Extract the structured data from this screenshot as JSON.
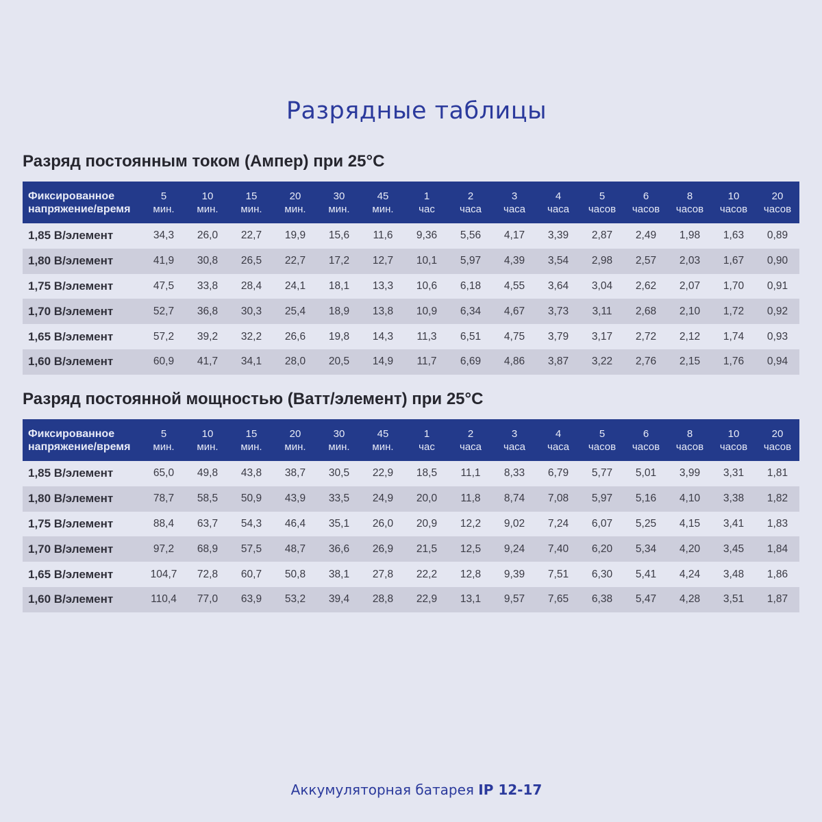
{
  "title": "Разрядные таблицы",
  "header_first": [
    "Фиксированное",
    "напряжение/время"
  ],
  "columns": [
    [
      "5",
      "мин."
    ],
    [
      "10",
      "мин."
    ],
    [
      "15",
      "мин."
    ],
    [
      "20",
      "мин."
    ],
    [
      "30",
      "мин."
    ],
    [
      "45",
      "мин."
    ],
    [
      "1",
      "час"
    ],
    [
      "2",
      "часа"
    ],
    [
      "3",
      "часа"
    ],
    [
      "4",
      "часа"
    ],
    [
      "5",
      "часов"
    ],
    [
      "6",
      "часов"
    ],
    [
      "8",
      "часов"
    ],
    [
      "10",
      "часов"
    ],
    [
      "20",
      "часов"
    ]
  ],
  "tables": [
    {
      "title": "Разряд постоянным током (Ампер) при 25°C",
      "rows": [
        {
          "label": "1,85 В/элемент",
          "values": [
            "34,3",
            "26,0",
            "22,7",
            "19,9",
            "15,6",
            "11,6",
            "9,36",
            "5,56",
            "4,17",
            "3,39",
            "2,87",
            "2,49",
            "1,98",
            "1,63",
            "0,89"
          ]
        },
        {
          "label": "1,80 В/элемент",
          "values": [
            "41,9",
            "30,8",
            "26,5",
            "22,7",
            "17,2",
            "12,7",
            "10,1",
            "5,97",
            "4,39",
            "3,54",
            "2,98",
            "2,57",
            "2,03",
            "1,67",
            "0,90"
          ]
        },
        {
          "label": "1,75 В/элемент",
          "values": [
            "47,5",
            "33,8",
            "28,4",
            "24,1",
            "18,1",
            "13,3",
            "10,6",
            "6,18",
            "4,55",
            "3,64",
            "3,04",
            "2,62",
            "2,07",
            "1,70",
            "0,91"
          ]
        },
        {
          "label": "1,70 В/элемент",
          "values": [
            "52,7",
            "36,8",
            "30,3",
            "25,4",
            "18,9",
            "13,8",
            "10,9",
            "6,34",
            "4,67",
            "3,73",
            "3,11",
            "2,68",
            "2,10",
            "1,72",
            "0,92"
          ]
        },
        {
          "label": "1,65 В/элемент",
          "values": [
            "57,2",
            "39,2",
            "32,2",
            "26,6",
            "19,8",
            "14,3",
            "11,3",
            "6,51",
            "4,75",
            "3,79",
            "3,17",
            "2,72",
            "2,12",
            "1,74",
            "0,93"
          ]
        },
        {
          "label": "1,60 В/элемент",
          "values": [
            "60,9",
            "41,7",
            "34,1",
            "28,0",
            "20,5",
            "14,9",
            "11,7",
            "6,69",
            "4,86",
            "3,87",
            "3,22",
            "2,76",
            "2,15",
            "1,76",
            "0,94"
          ]
        }
      ]
    },
    {
      "title": "Разряд постоянной мощностью (Ватт/элемент) при 25°C",
      "rows": [
        {
          "label": "1,85 В/элемент",
          "values": [
            "65,0",
            "49,8",
            "43,8",
            "38,7",
            "30,5",
            "22,9",
            "18,5",
            "11,1",
            "8,33",
            "6,79",
            "5,77",
            "5,01",
            "3,99",
            "3,31",
            "1,81"
          ]
        },
        {
          "label": "1,80 В/элемент",
          "values": [
            "78,7",
            "58,5",
            "50,9",
            "43,9",
            "33,5",
            "24,9",
            "20,0",
            "11,8",
            "8,74",
            "7,08",
            "5,97",
            "5,16",
            "4,10",
            "3,38",
            "1,82"
          ]
        },
        {
          "label": "1,75 В/элемент",
          "values": [
            "88,4",
            "63,7",
            "54,3",
            "46,4",
            "35,1",
            "26,0",
            "20,9",
            "12,2",
            "9,02",
            "7,24",
            "6,07",
            "5,25",
            "4,15",
            "3,41",
            "1,83"
          ]
        },
        {
          "label": "1,70 В/элемент",
          "values": [
            "97,2",
            "68,9",
            "57,5",
            "48,7",
            "36,6",
            "26,9",
            "21,5",
            "12,5",
            "9,24",
            "7,40",
            "6,20",
            "5,34",
            "4,20",
            "3,45",
            "1,84"
          ]
        },
        {
          "label": "1,65 В/элемент",
          "values": [
            "104,7",
            "72,8",
            "60,7",
            "50,8",
            "38,1",
            "27,8",
            "22,2",
            "12,8",
            "9,39",
            "7,51",
            "6,30",
            "5,41",
            "4,24",
            "3,48",
            "1,86"
          ]
        },
        {
          "label": "1,60 В/элемент",
          "values": [
            "110,4",
            "77,0",
            "63,9",
            "53,2",
            "39,4",
            "28,8",
            "22,9",
            "13,1",
            "9,57",
            "7,65",
            "6,38",
            "5,47",
            "4,28",
            "3,51",
            "1,87"
          ]
        }
      ]
    }
  ],
  "footer": {
    "text": "Аккумуляторная батарея ",
    "model": "IP 12-17"
  },
  "colors": {
    "accent": "#233a8b",
    "title": "#2b3a9c",
    "background": "#e4e6f1",
    "row_alt": "#cdcedc"
  }
}
